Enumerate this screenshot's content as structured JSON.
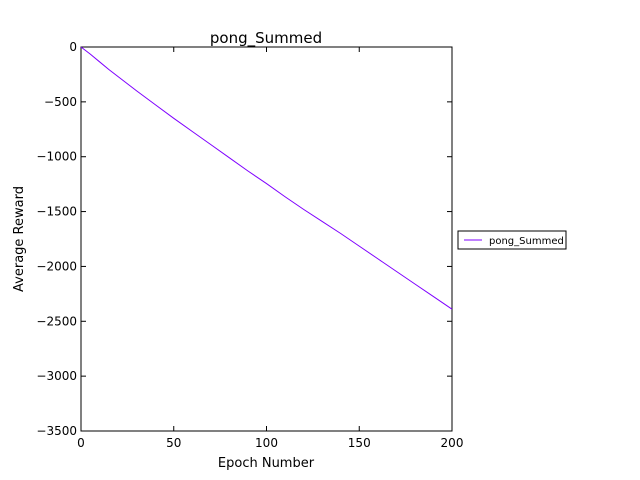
{
  "chart_data": {
    "type": "line",
    "title": "pong_Summed",
    "xlabel": "Epoch Number",
    "ylabel": "Average Reward",
    "xlim": [
      0,
      200
    ],
    "ylim": [
      -3500,
      0
    ],
    "xticks": [
      0,
      50,
      100,
      150,
      200
    ],
    "yticks": [
      0,
      -500,
      -1000,
      -1500,
      -2000,
      -2500,
      -3000,
      -3500
    ],
    "grid": false,
    "legend_position": "right",
    "series": [
      {
        "name": "pong_Summed",
        "color": "#7f00ff",
        "x": [
          0,
          5,
          10,
          15,
          20,
          25,
          30,
          40,
          50,
          60,
          70,
          80,
          90,
          100,
          110,
          120,
          130,
          140,
          150,
          160,
          170,
          180,
          190,
          200
        ],
        "y": [
          0,
          -65,
          -135,
          -205,
          -270,
          -335,
          -400,
          -525,
          -650,
          -770,
          -890,
          -1010,
          -1130,
          -1245,
          -1365,
          -1480,
          -1590,
          -1700,
          -1815,
          -1930,
          -2045,
          -2160,
          -2275,
          -2390
        ]
      }
    ]
  }
}
